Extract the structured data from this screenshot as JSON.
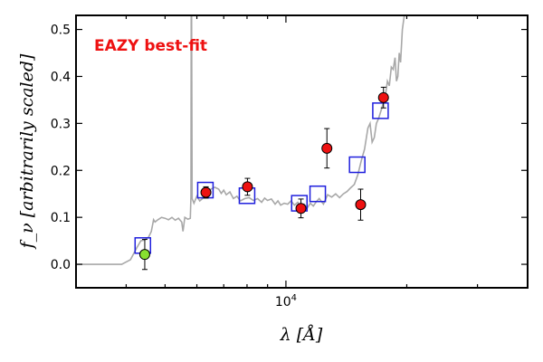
{
  "chart_data": {
    "type": "scatter",
    "annotation": "EAZY best-fit",
    "xlabel": "λ [Å]",
    "ylabel": "f_ν [arbitrarily scaled]",
    "xscale": "log",
    "xlim": [
      3000,
      40000
    ],
    "ylim": [
      -0.05,
      0.53
    ],
    "yticks": [
      0.0,
      0.1,
      0.2,
      0.3,
      0.4,
      0.5
    ],
    "ytick_labels": [
      "0.0",
      "0.1",
      "0.2",
      "0.3",
      "0.4",
      "0.5"
    ],
    "xtick_labels": [
      {
        "value": 10000,
        "label": "10",
        "exponent": "4"
      }
    ],
    "grid": false,
    "colors": {
      "template": "#a8a8a8",
      "model_box": "#1f1fdd",
      "observed": "#ee1111",
      "observed_special": "#88e030",
      "annotation": "#ee1111"
    },
    "template_sed": [
      [
        3000,
        0.0
      ],
      [
        3900,
        0.0
      ],
      [
        4100,
        0.01
      ],
      [
        4250,
        0.035
      ],
      [
        4350,
        0.05
      ],
      [
        4450,
        0.052
      ],
      [
        4550,
        0.058
      ],
      [
        4620,
        0.07
      ],
      [
        4680,
        0.095
      ],
      [
        4720,
        0.09
      ],
      [
        4800,
        0.095
      ],
      [
        4900,
        0.1
      ],
      [
        5000,
        0.098
      ],
      [
        5100,
        0.095
      ],
      [
        5200,
        0.1
      ],
      [
        5300,
        0.094
      ],
      [
        5400,
        0.098
      ],
      [
        5500,
        0.09
      ],
      [
        5540,
        0.07
      ],
      [
        5600,
        0.1
      ],
      [
        5700,
        0.096
      ],
      [
        5780,
        0.098
      ],
      [
        5800,
        0.145
      ],
      [
        5808,
        0.53
      ],
      [
        5820,
        0.53
      ],
      [
        5840,
        0.14
      ],
      [
        5900,
        0.13
      ],
      [
        6000,
        0.145
      ],
      [
        6100,
        0.135
      ],
      [
        6200,
        0.14
      ],
      [
        6300,
        0.158
      ],
      [
        6400,
        0.152
      ],
      [
        6500,
        0.16
      ],
      [
        6650,
        0.164
      ],
      [
        6800,
        0.16
      ],
      [
        6900,
        0.151
      ],
      [
        7000,
        0.158
      ],
      [
        7100,
        0.148
      ],
      [
        7250,
        0.154
      ],
      [
        7400,
        0.14
      ],
      [
        7550,
        0.145
      ],
      [
        7700,
        0.135
      ],
      [
        7900,
        0.14
      ],
      [
        8100,
        0.142
      ],
      [
        8300,
        0.136
      ],
      [
        8500,
        0.14
      ],
      [
        8700,
        0.132
      ],
      [
        8850,
        0.141
      ],
      [
        9000,
        0.136
      ],
      [
        9200,
        0.139
      ],
      [
        9400,
        0.128
      ],
      [
        9550,
        0.135
      ],
      [
        9700,
        0.126
      ],
      [
        9900,
        0.13
      ],
      [
        10100,
        0.128
      ],
      [
        10300,
        0.135
      ],
      [
        10500,
        0.126
      ],
      [
        10700,
        0.132
      ],
      [
        10900,
        0.124
      ],
      [
        11100,
        0.128
      ],
      [
        11300,
        0.12
      ],
      [
        11500,
        0.13
      ],
      [
        11700,
        0.124
      ],
      [
        11900,
        0.133
      ],
      [
        12100,
        0.14
      ],
      [
        12400,
        0.128
      ],
      [
        12700,
        0.148
      ],
      [
        13000,
        0.143
      ],
      [
        13300,
        0.15
      ],
      [
        13600,
        0.142
      ],
      [
        13900,
        0.15
      ],
      [
        14200,
        0.155
      ],
      [
        14500,
        0.163
      ],
      [
        14800,
        0.17
      ],
      [
        15100,
        0.19
      ],
      [
        15400,
        0.22
      ],
      [
        15700,
        0.245
      ],
      [
        16000,
        0.29
      ],
      [
        16200,
        0.3
      ],
      [
        16400,
        0.26
      ],
      [
        16600,
        0.27
      ],
      [
        16800,
        0.3
      ],
      [
        17000,
        0.31
      ],
      [
        17300,
        0.33
      ],
      [
        17500,
        0.345
      ],
      [
        17700,
        0.36
      ],
      [
        17900,
        0.39
      ],
      [
        18100,
        0.38
      ],
      [
        18300,
        0.42
      ],
      [
        18500,
        0.415
      ],
      [
        18700,
        0.44
      ],
      [
        18850,
        0.39
      ],
      [
        19000,
        0.4
      ],
      [
        19150,
        0.45
      ],
      [
        19300,
        0.43
      ],
      [
        19500,
        0.5
      ],
      [
        19700,
        0.53
      ]
    ],
    "model_points": [
      {
        "lambda": 4400,
        "flux": 0.04
      },
      {
        "lambda": 6300,
        "flux": 0.158
      },
      {
        "lambda": 8000,
        "flux": 0.146
      },
      {
        "lambda": 10800,
        "flux": 0.13
      },
      {
        "lambda": 12000,
        "flux": 0.15
      },
      {
        "lambda": 15050,
        "flux": 0.212
      },
      {
        "lambda": 17200,
        "flux": 0.327
      }
    ],
    "observed_points": [
      {
        "lambda": 4450,
        "flux": 0.021,
        "err": 0.032,
        "special": true
      },
      {
        "lambda": 6320,
        "flux": 0.153,
        "err": 0.012,
        "special": false
      },
      {
        "lambda": 8020,
        "flux": 0.165,
        "err": 0.018,
        "special": false
      },
      {
        "lambda": 10900,
        "flux": 0.119,
        "err": 0.02,
        "special": false
      },
      {
        "lambda": 12650,
        "flux": 0.247,
        "err": 0.042,
        "special": false
      },
      {
        "lambda": 15350,
        "flux": 0.127,
        "err": 0.033,
        "special": false
      },
      {
        "lambda": 17500,
        "flux": 0.355,
        "err": 0.022,
        "special": false
      }
    ]
  }
}
